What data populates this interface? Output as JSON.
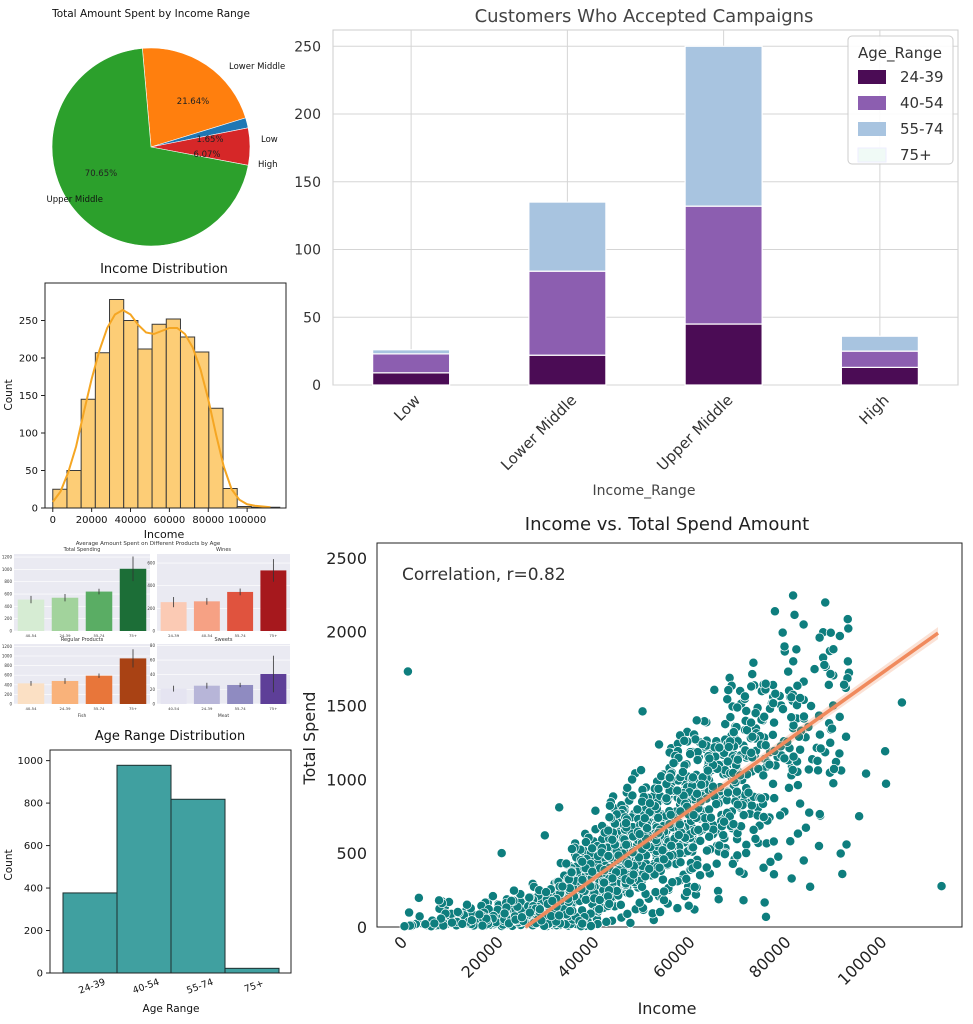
{
  "chart_data": [
    {
      "id": "pie",
      "type": "pie",
      "title": "Total Amount Spent by Income Range",
      "labels": [
        "Upper Middle",
        "Lower Middle",
        "Low",
        "High"
      ],
      "values": [
        70.65,
        21.64,
        1.65,
        6.07
      ],
      "pct_labels": [
        "70.65%",
        "21.64%",
        "1.65%",
        "6.07%"
      ],
      "colors": [
        "#2ca02c",
        "#ff7f0e",
        "#1f77b4",
        "#d62728"
      ]
    },
    {
      "id": "income_hist",
      "type": "bar",
      "title": "Income Distribution",
      "xlabel": "Income",
      "ylabel": "Count",
      "bin_edges": [
        0,
        7300,
        14600,
        21900,
        29200,
        36500,
        43800,
        51100,
        58400,
        65700,
        73000,
        80300,
        87600,
        94900,
        102200,
        109500,
        116800
      ],
      "values": [
        25,
        50,
        145,
        207,
        278,
        250,
        212,
        245,
        252,
        228,
        208,
        133,
        26,
        2,
        1,
        1
      ],
      "kde_x": [
        0,
        4000,
        8000,
        12000,
        16000,
        20000,
        24000,
        28000,
        32000,
        36000,
        40000,
        44000,
        48000,
        52000,
        56000,
        60000,
        64000,
        68000,
        72000,
        76000,
        80000,
        84000,
        88000,
        92000,
        96000,
        100000,
        104000,
        108000,
        112000
      ],
      "kde_y": [
        8,
        22,
        48,
        82,
        128,
        172,
        210,
        240,
        258,
        264,
        258,
        244,
        234,
        232,
        236,
        240,
        240,
        232,
        214,
        185,
        145,
        98,
        55,
        25,
        11,
        5,
        3,
        2,
        1
      ],
      "xticks": [
        0,
        20000,
        40000,
        60000,
        80000,
        100000
      ],
      "xlim": [
        -4000,
        120000
      ],
      "yticks": [
        0,
        50,
        100,
        150,
        200,
        250
      ],
      "ylim": [
        0,
        300
      ],
      "fill": "#fdcd76",
      "kde_color": "#f5a623"
    },
    {
      "id": "campaigns",
      "type": "bar",
      "title": "Customers Who Accepted Campaigns",
      "xlabel": "Income_Range",
      "ylabel": "",
      "categories": [
        "Low",
        "Lower Middle",
        "Upper Middle",
        "High"
      ],
      "series": [
        {
          "name": "24-39",
          "values": [
            9,
            22,
            45,
            13
          ],
          "color": "#4b0c55"
        },
        {
          "name": "40-54",
          "values": [
            14,
            62,
            87,
            12
          ],
          "color": "#8c5eb0"
        },
        {
          "name": "55-74",
          "values": [
            3,
            51,
            118,
            11
          ],
          "color": "#a8c4e0"
        },
        {
          "name": "75+",
          "values": [
            0,
            0,
            0,
            0
          ],
          "color": "#f0faf6"
        }
      ],
      "legend_title": "Age_Range",
      "legend_position": "top-right",
      "yticks": [
        0,
        50,
        100,
        150,
        200,
        250
      ],
      "ylim": [
        0,
        262
      ],
      "grid": true
    },
    {
      "id": "avg_spent",
      "type": "bar",
      "title": "Average Amount Spent on Different Products by Age",
      "panels": [
        {
          "title": "Total Spending",
          "categories": [
            "40-54",
            "24-39",
            "55-74",
            "75+"
          ],
          "values": [
            510,
            540,
            640,
            1010
          ],
          "colors": [
            "#d6ecd3",
            "#a2d39c",
            "#5aad64",
            "#1c6e37"
          ],
          "yticks": [
            0,
            200,
            400,
            600,
            800,
            1000,
            1200
          ],
          "ylim": [
            0,
            1250
          ],
          "err": [
            60,
            60,
            45,
            200
          ]
        },
        {
          "title": "Wines",
          "categories": [
            "24-39",
            "40-54",
            "55-74",
            "75+"
          ],
          "values": [
            255,
            262,
            345,
            535
          ],
          "colors": [
            "#fbcab4",
            "#f6a184",
            "#e0533e",
            "#a6181d"
          ],
          "yticks": [
            0,
            200,
            400,
            600
          ],
          "ylim": [
            0,
            680
          ],
          "err": [
            45,
            30,
            30,
            100
          ]
        },
        {
          "title": "Regular Products",
          "categories": [
            "40-54",
            "24-39",
            "55-74",
            "75+"
          ],
          "values": [
            430,
            480,
            590,
            950
          ],
          "colors": [
            "#fbe0c4",
            "#f9b27a",
            "#e8763a",
            "#a94214"
          ],
          "yticks": [
            0,
            200,
            400,
            600,
            800,
            1000,
            1200
          ],
          "ylim": [
            0,
            1250
          ],
          "err": [
            50,
            60,
            45,
            190
          ],
          "xlabel": "Fish"
        },
        {
          "title": "Sweets",
          "categories": [
            "40-54",
            "24-39",
            "55-74",
            "75+"
          ],
          "values": [
            21,
            25,
            26,
            41
          ],
          "colors": [
            "#e5e4f1",
            "#b7b5d8",
            "#8f8bc1",
            "#5e3f98"
          ],
          "yticks": [
            0,
            20,
            40,
            60,
            80
          ],
          "ylim": [
            0,
            82
          ],
          "err": [
            4,
            4,
            3,
            25
          ],
          "xlabel": "Meat"
        }
      ]
    },
    {
      "id": "age_dist",
      "type": "bar",
      "title": "Age Range Distribution",
      "xlabel": "Age Range",
      "ylabel": "Count",
      "categories": [
        "24-39",
        "40-54",
        "55-74",
        "75+"
      ],
      "values": [
        377,
        978,
        818,
        22
      ],
      "yticks": [
        0,
        200,
        400,
        600,
        800,
        1000
      ],
      "ylim": [
        0,
        1050
      ],
      "color": "#40a0a0"
    },
    {
      "id": "scatter",
      "type": "scatter",
      "title": "Income vs. Total Spend Amount",
      "annotation": "Correlation, r=0.82",
      "xlabel": "Income",
      "ylabel": "Total Spend",
      "xticks": [
        0,
        20000,
        40000,
        60000,
        80000,
        100000
      ],
      "xlim": [
        -4000,
        118000
      ],
      "yticks": [
        0,
        500,
        1000,
        1500,
        2000,
        2500
      ],
      "ylim": [
        0,
        2600
      ],
      "point_color": "#0e7e7e",
      "line_color": "#f08a5d",
      "fit_line": [
        [
          27000,
          0
        ],
        [
          113000,
          1990
        ]
      ],
      "n_points": 2200,
      "outliers": [
        [
          2447,
          1730
        ],
        [
          51381,
          1460
        ],
        [
          113734,
          277
        ],
        [
          105471,
          1520
        ],
        [
          101970,
          1190
        ],
        [
          102160,
          970
        ],
        [
          96547,
          750
        ],
        [
          92533,
          1970
        ],
        [
          93404,
          1640
        ],
        [
          85000,
          450
        ],
        [
          1730,
          5
        ],
        [
          8940,
          180
        ],
        [
          22000,
          500
        ],
        [
          34000,
          810
        ],
        [
          31000,
          620
        ]
      ],
      "grid": false
    }
  ]
}
